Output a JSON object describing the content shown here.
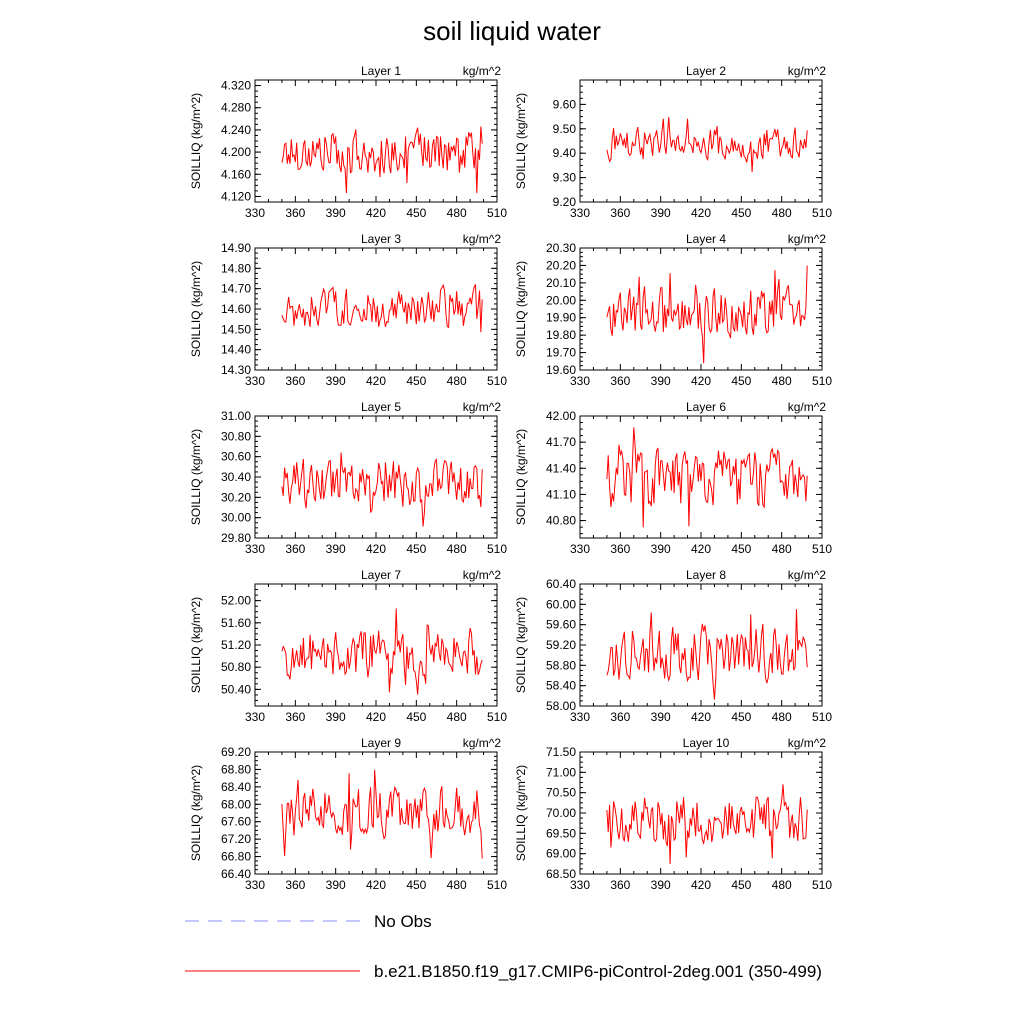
{
  "title": "soil liquid water",
  "legend": [
    {
      "label": "No Obs",
      "color": "#8c8cff",
      "style": "dashed"
    },
    {
      "label": "b.e21.B1850.f19_g17.CMIP6-piControl-2deg.001 (350-499)",
      "color": "#ff0000",
      "style": "solid"
    }
  ],
  "colors": {
    "series": "#ff0000",
    "obs": "#8c8cff",
    "axis": "#000000"
  },
  "chart_data": [
    {
      "type": "line",
      "title": "Layer 1",
      "units": "kg/m^2",
      "ylabel": "SOILLIQ  (kg/m^2)",
      "xlim": [
        330,
        510
      ],
      "xticks": [
        330,
        360,
        390,
        420,
        450,
        480,
        510
      ],
      "ylim": [
        4.11,
        4.33
      ],
      "yticks": [
        "4.120",
        "4.160",
        "4.200",
        "4.240",
        "4.280",
        "4.320"
      ],
      "x_start": 350,
      "x_end": 499,
      "y_base": 4.2,
      "y_amp": 0.045,
      "series": [
        {
          "name": "b.e21.B1850.f19_g17.CMIP6-piControl-2deg.001 (350-499)",
          "values": []
        }
      ]
    },
    {
      "type": "line",
      "title": "Layer 2",
      "units": "kg/m^2",
      "ylabel": "SOILLIQ  (kg/m^2)",
      "xlim": [
        330,
        510
      ],
      "xticks": [
        330,
        360,
        390,
        420,
        450,
        480,
        510
      ],
      "ylim": [
        9.2,
        9.7
      ],
      "yticks": [
        "9.20",
        "9.30",
        "9.40",
        "9.50",
        "9.60"
      ],
      "x_start": 350,
      "x_end": 499,
      "y_base": 9.44,
      "y_amp": 0.08,
      "series": [
        {
          "name": "b.e21.B1850.f19_g17.CMIP6-piControl-2deg.001 (350-499)",
          "values": []
        }
      ]
    },
    {
      "type": "line",
      "title": "Layer 3",
      "units": "kg/m^2",
      "ylabel": "SOILLIQ  (kg/m^2)",
      "xlim": [
        330,
        510
      ],
      "xticks": [
        330,
        360,
        390,
        420,
        450,
        480,
        510
      ],
      "ylim": [
        14.3,
        14.9
      ],
      "yticks": [
        "14.30",
        "14.40",
        "14.50",
        "14.60",
        "14.70",
        "14.80",
        "14.90"
      ],
      "x_start": 350,
      "x_end": 499,
      "y_base": 14.6,
      "y_amp": 0.12,
      "series": [
        {
          "name": "b.e21.B1850.f19_g17.CMIP6-piControl-2deg.001 (350-499)",
          "values": []
        }
      ]
    },
    {
      "type": "line",
      "title": "Layer 4",
      "units": "kg/m^2",
      "ylabel": "SOILLIQ  (kg/m^2)",
      "xlim": [
        330,
        510
      ],
      "xticks": [
        330,
        360,
        390,
        420,
        450,
        480,
        510
      ],
      "ylim": [
        19.6,
        20.3
      ],
      "yticks": [
        "19.60",
        "19.70",
        "19.80",
        "19.90",
        "20.00",
        "20.10",
        "20.20",
        "20.30"
      ],
      "x_start": 350,
      "x_end": 499,
      "y_base": 19.93,
      "y_amp": 0.16,
      "series": [
        {
          "name": "b.e21.B1850.f19_g17.CMIP6-piControl-2deg.001 (350-499)",
          "values": []
        }
      ]
    },
    {
      "type": "line",
      "title": "Layer 5",
      "units": "kg/m^2",
      "ylabel": "SOILLIQ  (kg/m^2)",
      "xlim": [
        330,
        510
      ],
      "xticks": [
        330,
        360,
        390,
        420,
        450,
        480,
        510
      ],
      "ylim": [
        29.8,
        31.0
      ],
      "yticks": [
        "29.80",
        "30.00",
        "30.20",
        "30.40",
        "30.60",
        "30.80",
        "31.00"
      ],
      "x_start": 350,
      "x_end": 499,
      "y_base": 30.33,
      "y_amp": 0.27,
      "series": [
        {
          "name": "b.e21.B1850.f19_g17.CMIP6-piControl-2deg.001 (350-499)",
          "values": []
        }
      ]
    },
    {
      "type": "line",
      "title": "Layer 6",
      "units": "kg/m^2",
      "ylabel": "SOILLIQ  (kg/m^2)",
      "xlim": [
        330,
        510
      ],
      "xticks": [
        330,
        360,
        390,
        420,
        450,
        480,
        510
      ],
      "ylim": [
        40.6,
        42.0
      ],
      "yticks": [
        "40.80",
        "41.10",
        "41.40",
        "41.70",
        "42.00"
      ],
      "x_start": 350,
      "x_end": 499,
      "y_base": 41.28,
      "y_amp": 0.38,
      "series": [
        {
          "name": "b.e21.B1850.f19_g17.CMIP6-piControl-2deg.001 (350-499)",
          "values": []
        }
      ]
    },
    {
      "type": "line",
      "title": "Layer 7",
      "units": "kg/m^2",
      "ylabel": "SOILLIQ  (kg/m^2)",
      "xlim": [
        330,
        510
      ],
      "xticks": [
        330,
        360,
        390,
        420,
        450,
        480,
        510
      ],
      "ylim": [
        50.1,
        52.3
      ],
      "yticks": [
        "50.40",
        "50.80",
        "51.20",
        "51.60",
        "52.00"
      ],
      "x_start": 350,
      "x_end": 499,
      "y_base": 51.05,
      "y_amp": 0.5,
      "series": [
        {
          "name": "b.e21.B1850.f19_g17.CMIP6-piControl-2deg.001 (350-499)",
          "values": []
        }
      ]
    },
    {
      "type": "line",
      "title": "Layer 8",
      "units": "kg/m^2",
      "ylabel": "SOILLIQ  (kg/m^2)",
      "xlim": [
        330,
        510
      ],
      "xticks": [
        330,
        360,
        390,
        420,
        450,
        480,
        510
      ],
      "ylim": [
        58.0,
        60.4
      ],
      "yticks": [
        "58.00",
        "58.40",
        "58.80",
        "59.20",
        "59.60",
        "60.00",
        "60.40"
      ],
      "x_start": 350,
      "x_end": 499,
      "y_base": 59.05,
      "y_amp": 0.6,
      "series": [
        {
          "name": "b.e21.B1850.f19_g17.CMIP6-piControl-2deg.001 (350-499)",
          "values": []
        }
      ]
    },
    {
      "type": "line",
      "title": "Layer 9",
      "units": "kg/m^2",
      "ylabel": "SOILLIQ  (kg/m^2)",
      "xlim": [
        330,
        510
      ],
      "xticks": [
        330,
        360,
        390,
        420,
        450,
        480,
        510
      ],
      "ylim": [
        66.4,
        69.2
      ],
      "yticks": [
        "66.40",
        "66.80",
        "67.20",
        "67.60",
        "68.00",
        "68.40",
        "68.80",
        "69.20"
      ],
      "x_start": 350,
      "x_end": 499,
      "y_base": 67.85,
      "y_amp": 0.65,
      "series": [
        {
          "name": "b.e21.B1850.f19_g17.CMIP6-piControl-2deg.001 (350-499)",
          "values": []
        }
      ]
    },
    {
      "type": "line",
      "title": "Layer 10",
      "units": "kg/m^2",
      "ylabel": "SOILLIQ  (kg/m^2)",
      "xlim": [
        330,
        510
      ],
      "xticks": [
        330,
        360,
        390,
        420,
        450,
        480,
        510
      ],
      "ylim": [
        68.5,
        71.5
      ],
      "yticks": [
        "68.50",
        "69.00",
        "69.50",
        "70.00",
        "70.50",
        "71.00",
        "71.50"
      ],
      "x_start": 350,
      "x_end": 499,
      "y_base": 69.85,
      "y_amp": 0.7,
      "series": [
        {
          "name": "b.e21.B1850.f19_g17.CMIP6-piControl-2deg.001 (350-499)",
          "values": []
        }
      ]
    }
  ]
}
